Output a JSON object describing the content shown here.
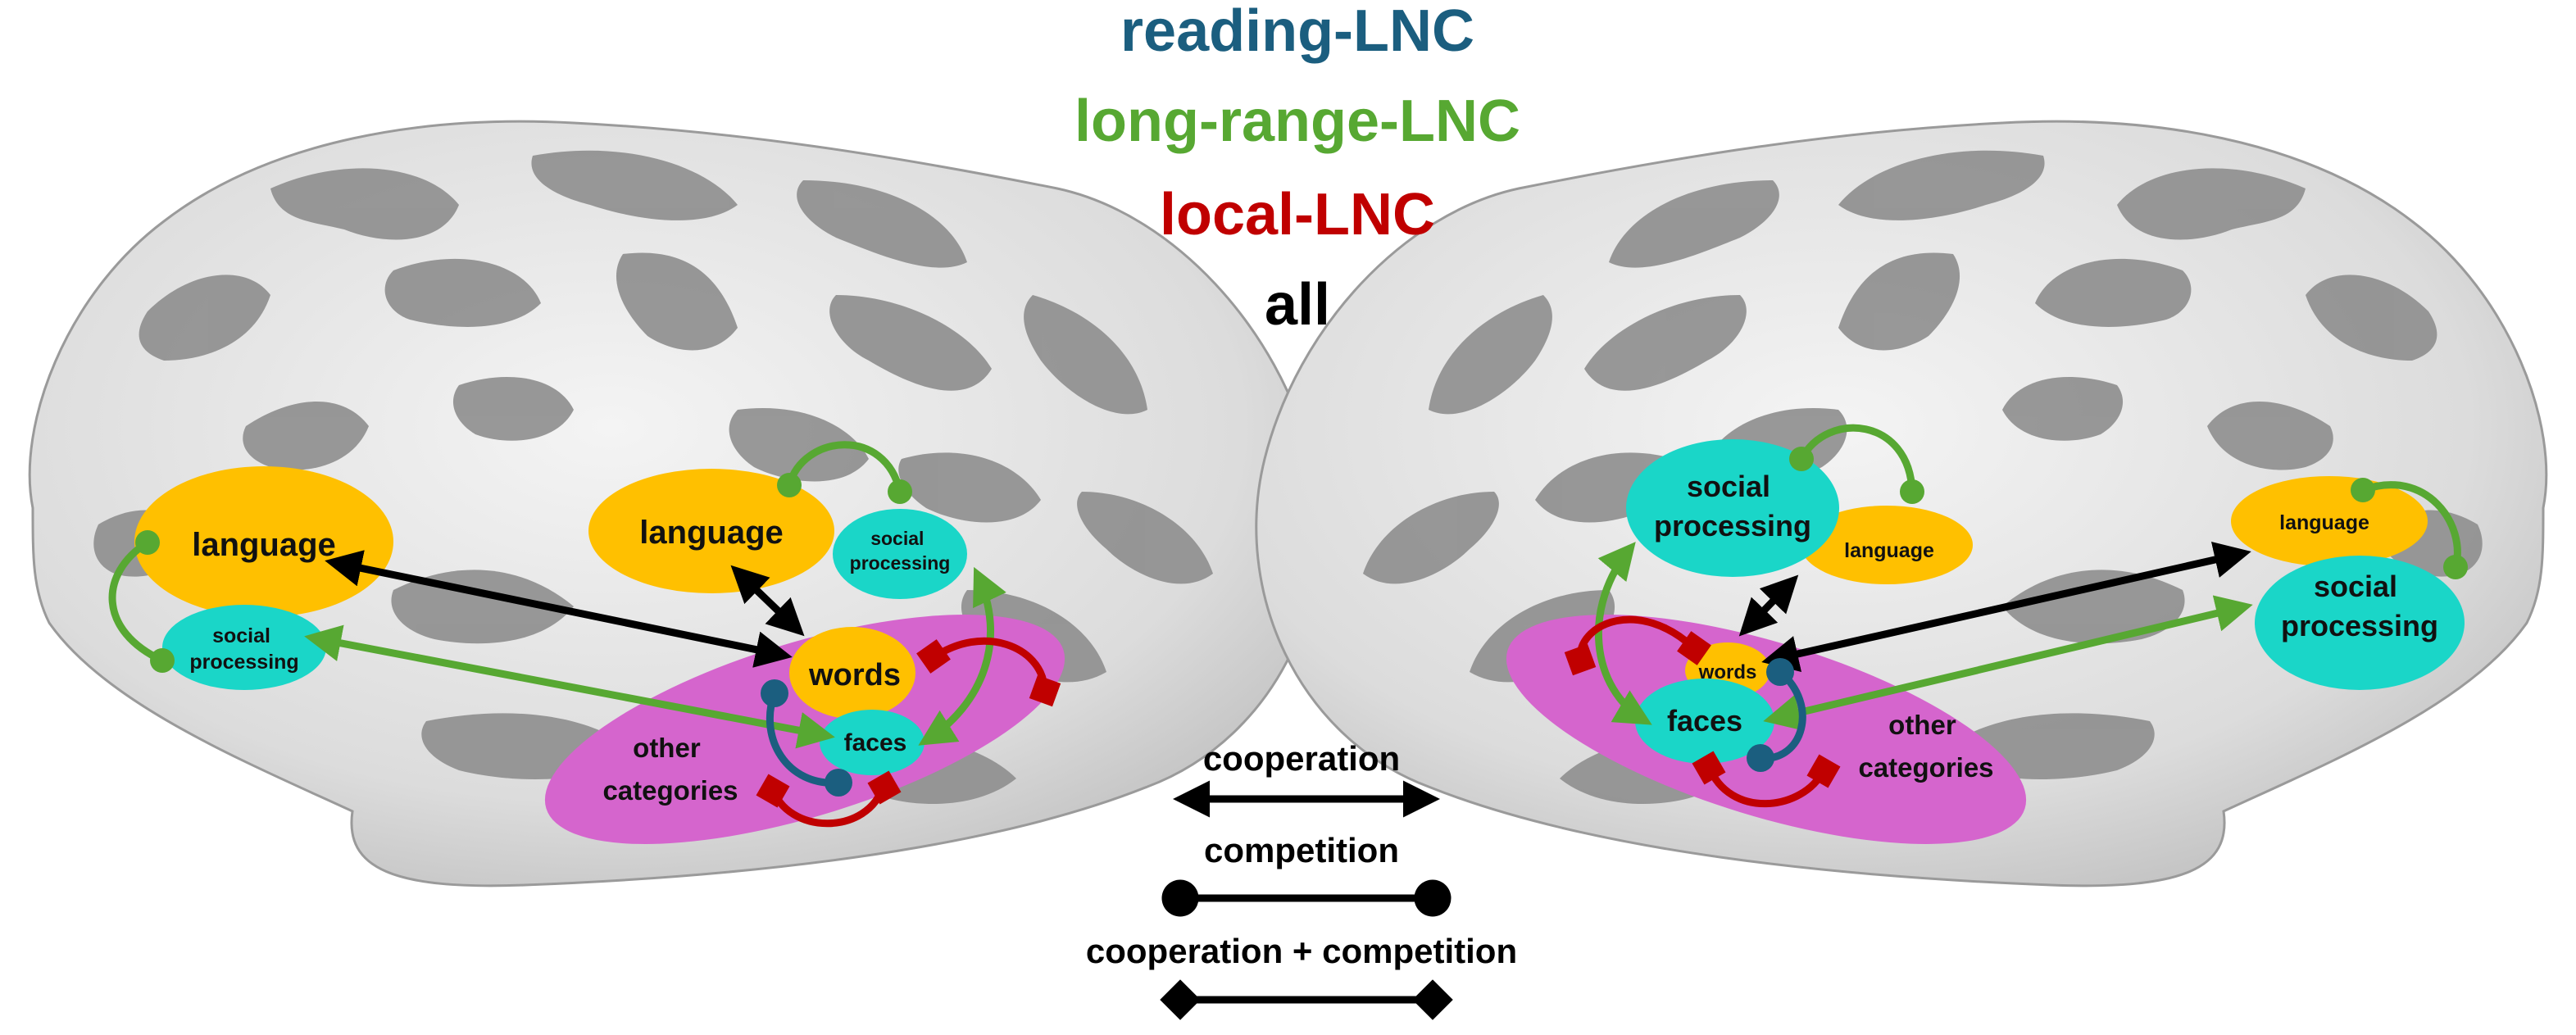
{
  "legend_titles": {
    "reading": "reading-LNC",
    "long_range": "long-range-LNC",
    "local": "local-LNC",
    "all": "all"
  },
  "colors": {
    "reading": "#1b5e7f",
    "long_range": "#57a832",
    "local": "#c00000",
    "all": "#000000",
    "language_region": "#ffc000",
    "social_region": "#1ad6c8",
    "category_region": "#d565cd",
    "brain_light": "#e4e4e4",
    "brain_dark": "#8c8c8c"
  },
  "left_hemisphere": {
    "language_frontal": "language",
    "social_frontal": "social processing",
    "language_temporal": "language",
    "social_temporal": "social processing",
    "words": "words",
    "faces": "faces",
    "other_categories": "other categories"
  },
  "right_hemisphere": {
    "social_temporal": "social processing",
    "language_temporal": "language",
    "language_frontal": "language",
    "social_frontal": "social processing",
    "words": "words",
    "faces": "faces",
    "other_categories": "other categories"
  },
  "key": {
    "cooperation": "cooperation",
    "competition": "competition",
    "both": "cooperation + competition"
  }
}
